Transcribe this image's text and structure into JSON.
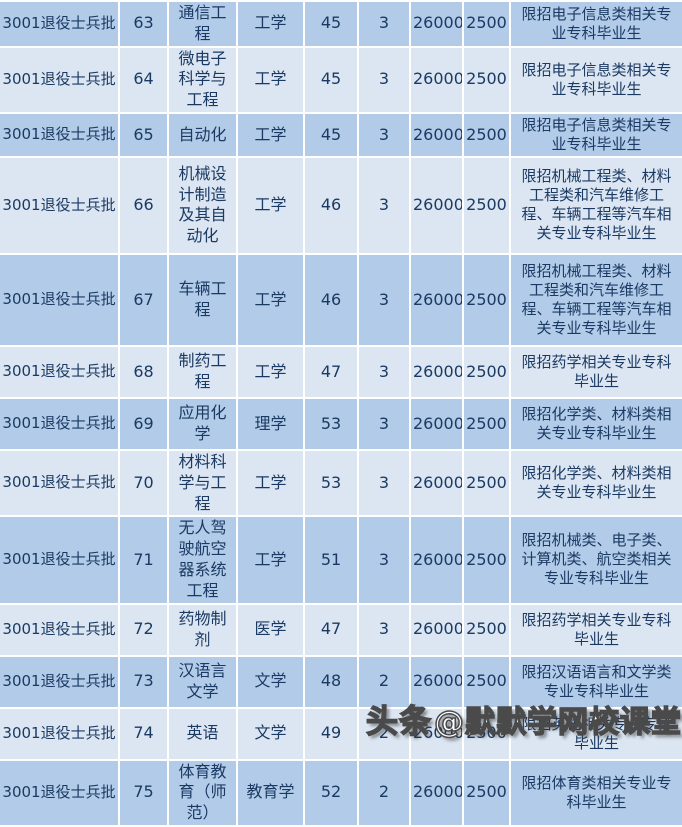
{
  "page": {
    "watermark": {
      "prefix": "头条",
      "account": "@默默学网校课堂"
    }
  },
  "table": {
    "colors": {
      "row_dark": "#b1cbe9",
      "row_light": "#dce6f2",
      "text": "#1b3a63",
      "border": "#ffffff"
    },
    "fields": [
      "batch",
      "seq",
      "major",
      "discipline",
      "plan",
      "duration",
      "tuition",
      "fee",
      "note"
    ],
    "rows": [
      {
        "batch": "3001退役士兵批",
        "seq": "63",
        "major": "通信工程",
        "discipline": "工学",
        "plan": "45",
        "duration": "3",
        "tuition": "26000",
        "fee": "2500",
        "note": "限招电子信息类相关专业专科毕业生"
      },
      {
        "batch": "3001退役士兵批",
        "seq": "64",
        "major": "微电子科学与工程",
        "discipline": "工学",
        "plan": "45",
        "duration": "3",
        "tuition": "26000",
        "fee": "2500",
        "note": "限招电子信息类相关专业专科毕业生"
      },
      {
        "batch": "3001退役士兵批",
        "seq": "65",
        "major": "自动化",
        "discipline": "工学",
        "plan": "45",
        "duration": "3",
        "tuition": "26000",
        "fee": "2500",
        "note": "限招电子信息类相关专业专科毕业生"
      },
      {
        "batch": "3001退役士兵批",
        "seq": "66",
        "major": "机械设计制造及其自动化",
        "discipline": "工学",
        "plan": "46",
        "duration": "3",
        "tuition": "26000",
        "fee": "2500",
        "note": "限招机械工程类、材料工程类和汽车维修工程、车辆工程等汽车相关专业专科毕业生"
      },
      {
        "batch": "3001退役士兵批",
        "seq": "67",
        "major": "车辆工程",
        "discipline": "工学",
        "plan": "46",
        "duration": "3",
        "tuition": "26000",
        "fee": "2500",
        "note": "限招机械工程类、材料工程类和汽车维修工程、车辆工程等汽车相关专业专科毕业生"
      },
      {
        "batch": "3001退役士兵批",
        "seq": "68",
        "major": "制药工程",
        "discipline": "工学",
        "plan": "47",
        "duration": "3",
        "tuition": "26000",
        "fee": "2500",
        "note": "限招药学相关专业专科毕业生"
      },
      {
        "batch": "3001退役士兵批",
        "seq": "69",
        "major": "应用化学",
        "discipline": "理学",
        "plan": "53",
        "duration": "3",
        "tuition": "26000",
        "fee": "2500",
        "note": "限招化学类、材料类相关专业专科毕业生"
      },
      {
        "batch": "3001退役士兵批",
        "seq": "70",
        "major": "材料科学与工程",
        "discipline": "工学",
        "plan": "53",
        "duration": "3",
        "tuition": "26000",
        "fee": "2500",
        "note": "限招化学类、材料类相关专业专科毕业生"
      },
      {
        "batch": "3001退役士兵批",
        "seq": "71",
        "major": "无人驾驶航空器系统工程",
        "discipline": "工学",
        "plan": "51",
        "duration": "3",
        "tuition": "26000",
        "fee": "2500",
        "note": "限招机械类、电子类、计算机类、航空类相关专业专科毕业生"
      },
      {
        "batch": "3001退役士兵批",
        "seq": "72",
        "major": "药物制剂",
        "discipline": "医学",
        "plan": "47",
        "duration": "3",
        "tuition": "26000",
        "fee": "2500",
        "note": "限招药学相关专业专科毕业生"
      },
      {
        "batch": "3001退役士兵批",
        "seq": "73",
        "major": "汉语言文学",
        "discipline": "文学",
        "plan": "48",
        "duration": "2",
        "tuition": "26000",
        "fee": "2500",
        "note": "限招汉语语言和文学类专业专科毕业生"
      },
      {
        "batch": "3001退役士兵批",
        "seq": "74",
        "major": "英语",
        "discipline": "文学",
        "plan": "49",
        "duration": "2",
        "tuition": "26000",
        "fee": "2500",
        "note": "限招英语相关专业专科毕业生"
      },
      {
        "batch": "3001退役士兵批",
        "seq": "75",
        "major": "体育教育（师范）",
        "discipline": "教育学",
        "plan": "52",
        "duration": "2",
        "tuition": "26000",
        "fee": "2500",
        "note": "限招体育类相关专业专科毕业生"
      }
    ]
  }
}
